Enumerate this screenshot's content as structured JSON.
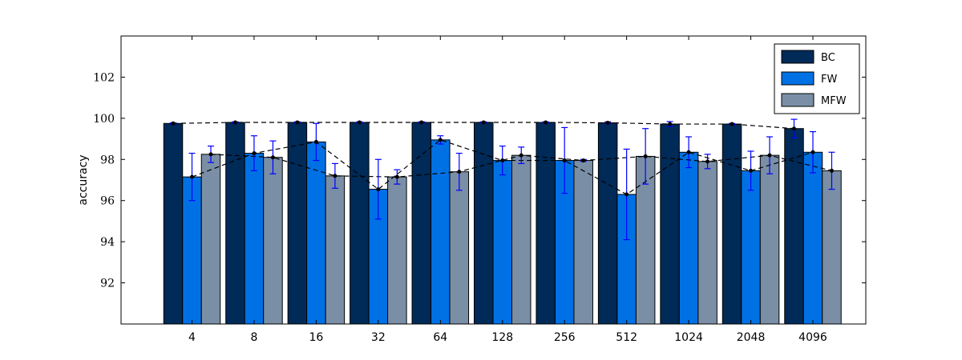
{
  "chart_data": {
    "type": "bar",
    "title": "",
    "xlabel": "",
    "ylabel": "accuracy",
    "ylim": [
      90,
      104
    ],
    "yticks": [
      92,
      94,
      96,
      98,
      100,
      102
    ],
    "categories": [
      "4",
      "8",
      "16",
      "32",
      "64",
      "128",
      "256",
      "512",
      "1024",
      "2048",
      "4096"
    ],
    "series": [
      {
        "name": "BC",
        "color": "#002a57",
        "values": [
          99.75,
          99.8,
          99.8,
          99.8,
          99.8,
          99.8,
          99.8,
          99.78,
          99.72,
          99.72,
          99.5
        ],
        "errors": [
          0.03,
          0.03,
          0.03,
          0.03,
          0.03,
          0.03,
          0.03,
          0.05,
          0.12,
          0.03,
          0.45
        ]
      },
      {
        "name": "FW",
        "color": "#0071e5",
        "values": [
          97.15,
          98.3,
          98.85,
          96.55,
          98.95,
          97.95,
          97.95,
          96.3,
          98.35,
          97.45,
          98.35
        ],
        "errors": [
          1.15,
          0.85,
          0.9,
          1.45,
          0.2,
          0.7,
          1.6,
          2.2,
          0.75,
          0.95,
          1.0
        ]
      },
      {
        "name": "MFW",
        "color": "#7a8fa6",
        "values": [
          98.25,
          98.1,
          97.2,
          97.15,
          97.4,
          98.2,
          97.95,
          98.15,
          97.9,
          98.2,
          97.45
        ],
        "errors": [
          0.4,
          0.8,
          0.6,
          0.35,
          0.9,
          0.4,
          0.05,
          1.35,
          0.35,
          0.9,
          0.9
        ]
      }
    ],
    "legend": {
      "placement": "top-right",
      "entries": [
        "BC",
        "FW",
        "MFW"
      ]
    },
    "grid": false
  }
}
